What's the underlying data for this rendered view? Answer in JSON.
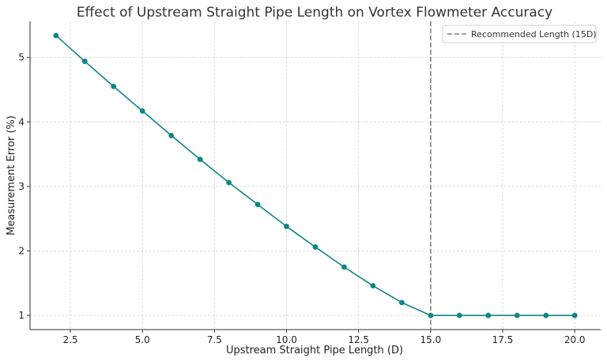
{
  "chart_data": {
    "type": "line",
    "title": "Effect of Upstream Straight Pipe Length on Vortex Flowmeter Accuracy",
    "xlabel": "Upstream Straight Pipe Length (D)",
    "ylabel": "Measurement Error (%)",
    "xlim": [
      1.1,
      20.9
    ],
    "ylim": [
      0.78,
      5.56
    ],
    "xticks": [
      2.5,
      5.0,
      7.5,
      10.0,
      12.5,
      15.0,
      17.5,
      20.0
    ],
    "xtick_labels": [
      "2.5",
      "5.0",
      "7.5",
      "10.0",
      "12.5",
      "15.0",
      "17.5",
      "20.0"
    ],
    "yticks": [
      1,
      2,
      3,
      4,
      5
    ],
    "ytick_labels": [
      "1",
      "2",
      "3",
      "4",
      "5"
    ],
    "grid": true,
    "legend_position": "top-right",
    "series": [
      {
        "kind": "line",
        "color": "#0e8585",
        "marker": "circle",
        "x": [
          2,
          3,
          4,
          5,
          6,
          7,
          8,
          9,
          10,
          11,
          12,
          13,
          14,
          15,
          16,
          17,
          18,
          19,
          20
        ],
        "y": [
          5.34,
          4.94,
          4.55,
          4.17,
          3.79,
          3.42,
          3.06,
          2.72,
          2.38,
          2.06,
          1.75,
          1.46,
          1.2,
          1.0,
          1.0,
          1.0,
          1.0,
          1.0,
          1.0
        ]
      }
    ],
    "reference_lines": [
      {
        "orientation": "vertical",
        "x": 15,
        "style": "dashed",
        "color": "#808080",
        "label": "Recommended Length (15D)"
      }
    ]
  }
}
